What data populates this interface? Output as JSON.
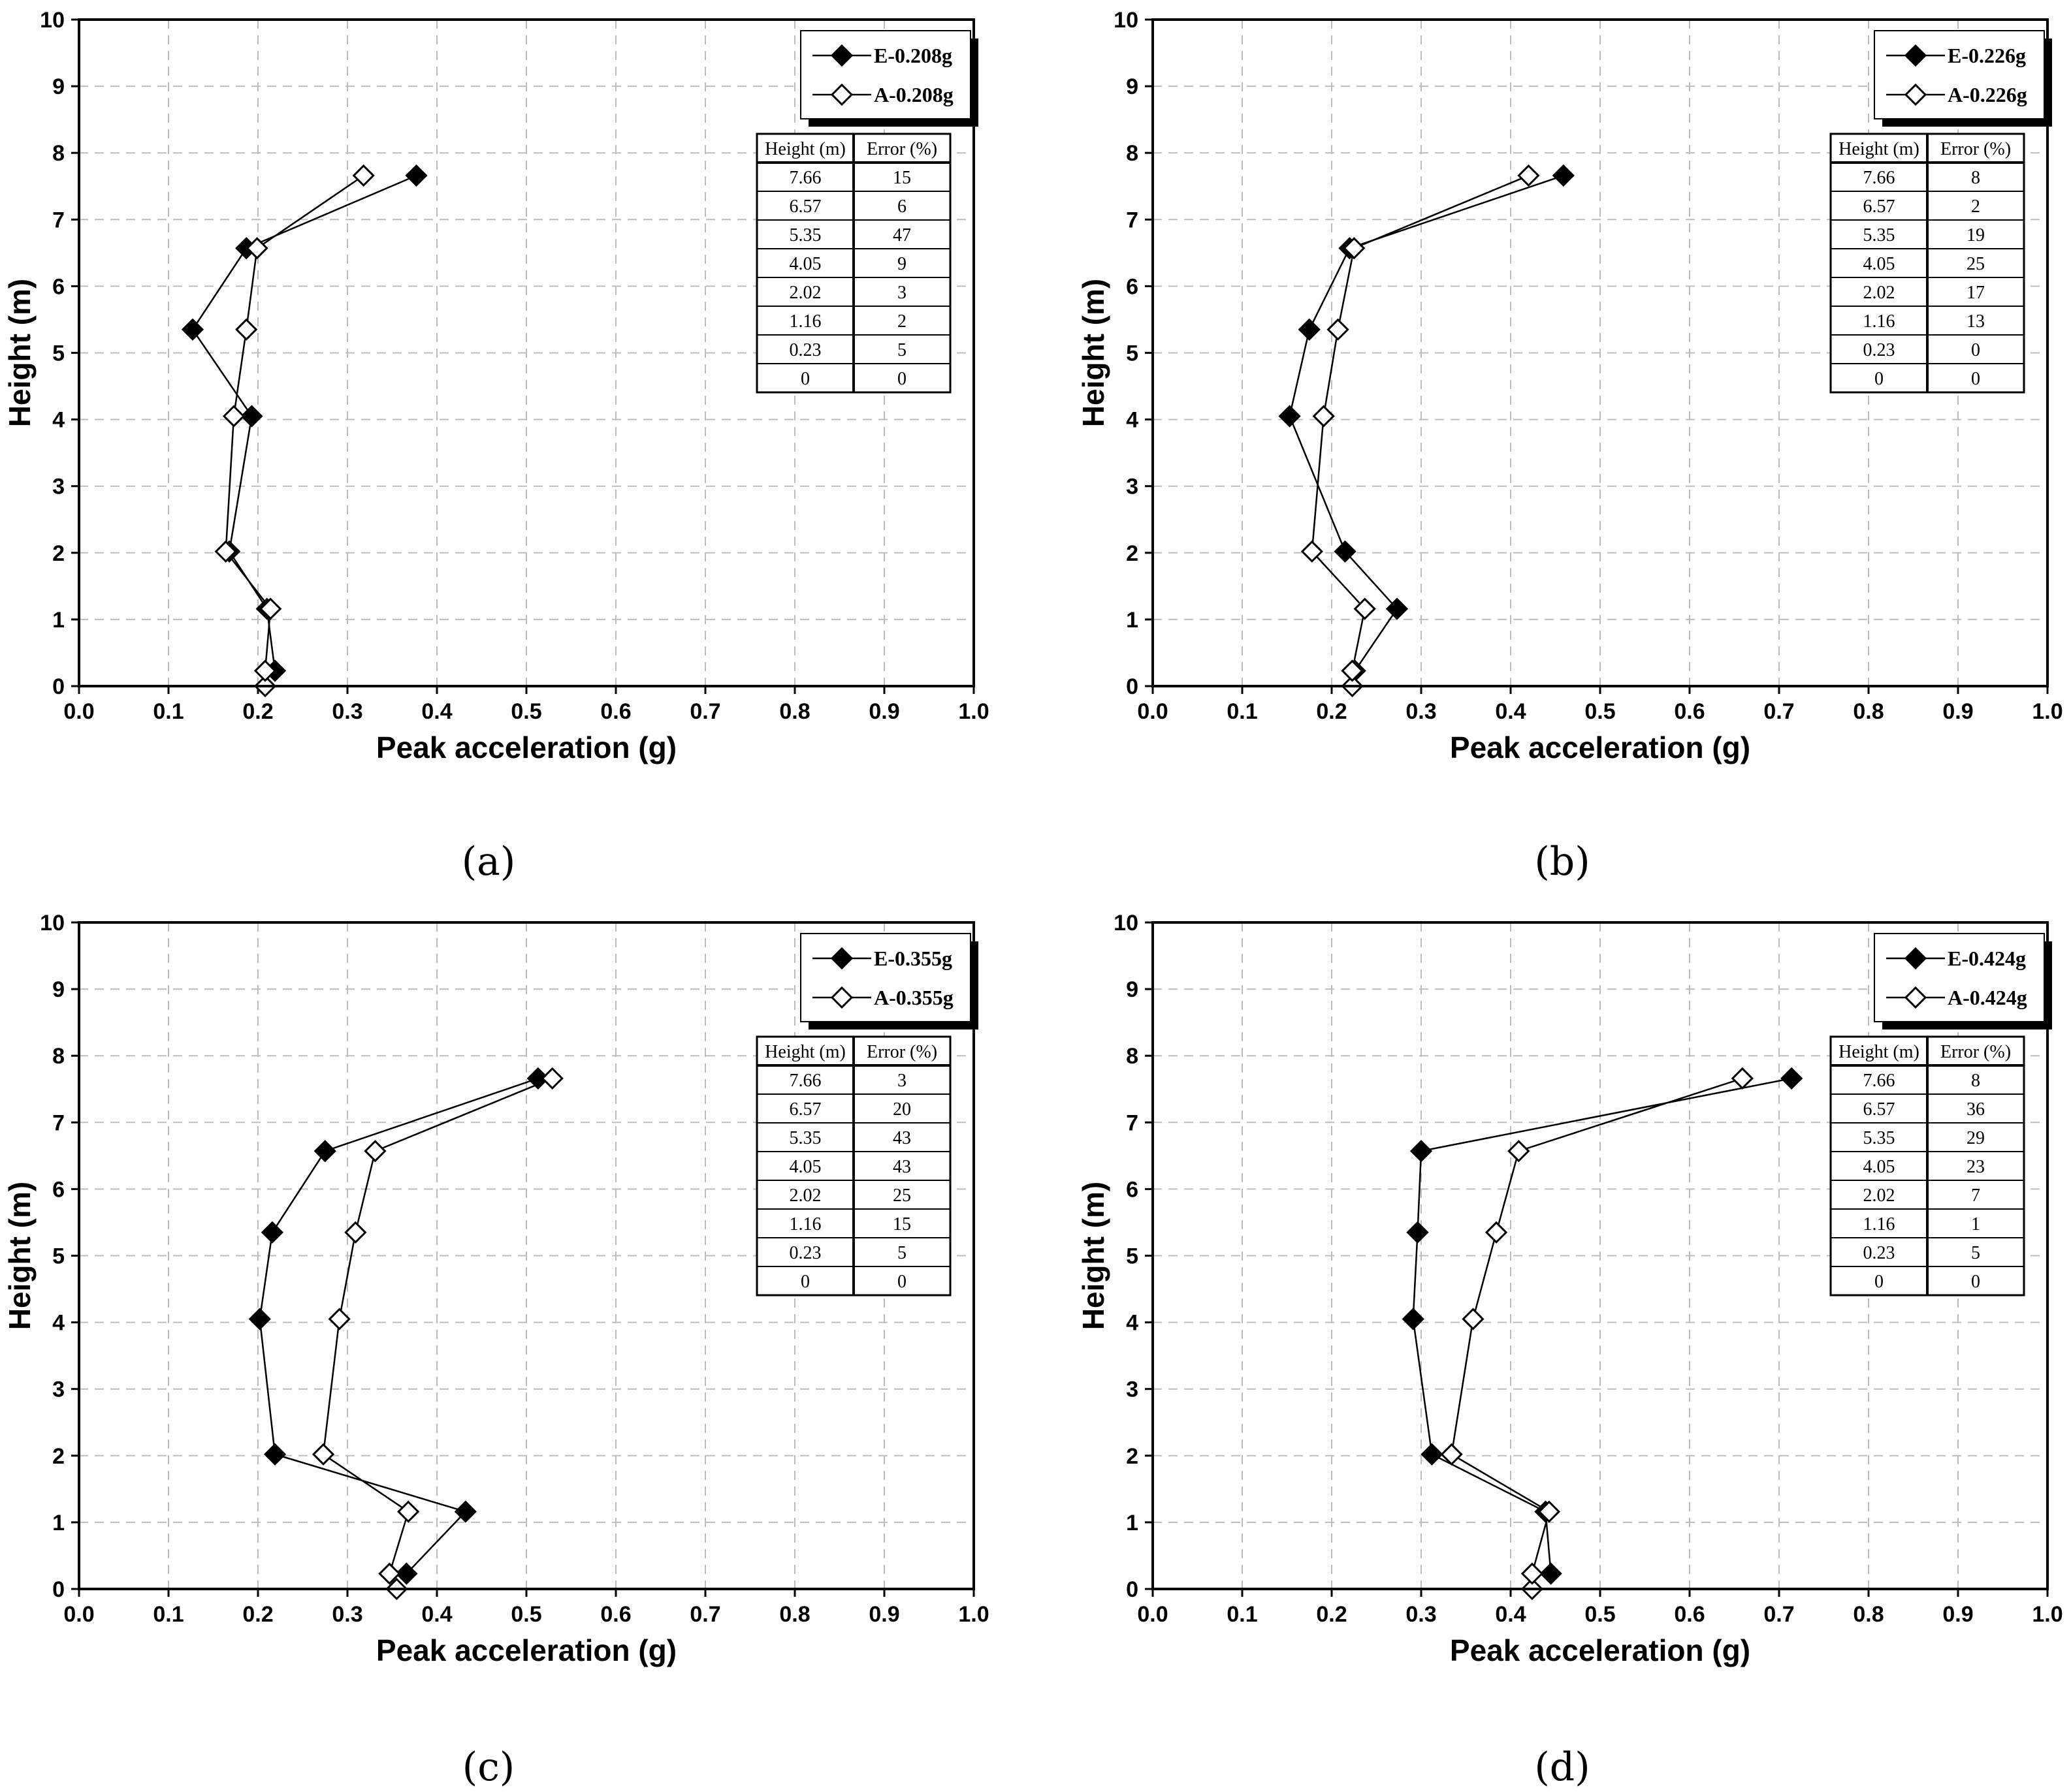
{
  "figure": {
    "panels": [
      {
        "id": "a",
        "caption": "(a)"
      },
      {
        "id": "b",
        "caption": "(b)"
      },
      {
        "id": "c",
        "caption": "(c)"
      },
      {
        "id": "d",
        "caption": "(d)"
      }
    ]
  },
  "chart_data": [
    {
      "type": "line",
      "panel": "(a)",
      "xlabel": "Peak acceleration (g)",
      "ylabel": "Height (m)",
      "xlim": [
        0.0,
        1.0
      ],
      "ylim": [
        0,
        10
      ],
      "xticks": [
        "0.0",
        "0.1",
        "0.2",
        "0.3",
        "0.4",
        "0.5",
        "0.6",
        "0.7",
        "0.8",
        "0.9",
        "1.0"
      ],
      "yticks": [
        "0",
        "1",
        "2",
        "3",
        "4",
        "5",
        "6",
        "7",
        "8",
        "9",
        "10"
      ],
      "grid": true,
      "legend_position": "top-right",
      "series": [
        {
          "name": "E-0.208g",
          "marker": "filled-diamond",
          "x": [
            0.219,
            0.21,
            0.168,
            0.193,
            0.127,
            0.187,
            0.377
          ],
          "y": [
            0.23,
            1.16,
            2.02,
            4.05,
            5.35,
            6.57,
            7.66
          ]
        },
        {
          "name": "A-0.208g",
          "marker": "open-diamond",
          "x": [
            0.208,
            0.208,
            0.214,
            0.164,
            0.173,
            0.187,
            0.199,
            0.318
          ],
          "y": [
            0,
            0.23,
            1.16,
            2.02,
            4.05,
            5.35,
            6.57,
            7.66
          ]
        }
      ],
      "table": {
        "headers": [
          "Height (m)",
          "Error (%)"
        ],
        "rows": [
          [
            "7.66",
            "15"
          ],
          [
            "6.57",
            "6"
          ],
          [
            "5.35",
            "47"
          ],
          [
            "4.05",
            "9"
          ],
          [
            "2.02",
            "3"
          ],
          [
            "1.16",
            "2"
          ],
          [
            "0.23",
            "5"
          ],
          [
            "0",
            "0"
          ]
        ]
      }
    },
    {
      "type": "line",
      "panel": "(b)",
      "xlabel": "Peak acceleration (g)",
      "ylabel": "Height (m)",
      "xlim": [
        0.0,
        1.0
      ],
      "ylim": [
        0,
        10
      ],
      "xticks": [
        "0.0",
        "0.1",
        "0.2",
        "0.3",
        "0.4",
        "0.5",
        "0.6",
        "0.7",
        "0.8",
        "0.9",
        "1.0"
      ],
      "yticks": [
        "0",
        "1",
        "2",
        "3",
        "4",
        "5",
        "6",
        "7",
        "8",
        "9",
        "10"
      ],
      "grid": true,
      "legend_position": "top-right",
      "series": [
        {
          "name": "E-0.226g",
          "marker": "filled-diamond",
          "x": [
            0.226,
            0.273,
            0.215,
            0.153,
            0.175,
            0.22,
            0.459
          ],
          "y": [
            0.23,
            1.16,
            2.02,
            4.05,
            5.35,
            6.57,
            7.66
          ]
        },
        {
          "name": "A-0.226g",
          "marker": "open-diamond",
          "x": [
            0.223,
            0.223,
            0.237,
            0.178,
            0.191,
            0.207,
            0.225,
            0.42
          ],
          "y": [
            0,
            0.23,
            1.16,
            2.02,
            4.05,
            5.35,
            6.57,
            7.66
          ]
        }
      ],
      "table": {
        "headers": [
          "Height (m)",
          "Error (%)"
        ],
        "rows": [
          [
            "7.66",
            "8"
          ],
          [
            "6.57",
            "2"
          ],
          [
            "5.35",
            "19"
          ],
          [
            "4.05",
            "25"
          ],
          [
            "2.02",
            "17"
          ],
          [
            "1.16",
            "13"
          ],
          [
            "0.23",
            "0"
          ],
          [
            "0",
            "0"
          ]
        ]
      }
    },
    {
      "type": "line",
      "panel": "(c)",
      "xlabel": "Peak acceleration (g)",
      "ylabel": "Height (m)",
      "xlim": [
        0.0,
        1.0
      ],
      "ylim": [
        0,
        10
      ],
      "xticks": [
        "0.0",
        "0.1",
        "0.2",
        "0.3",
        "0.4",
        "0.5",
        "0.6",
        "0.7",
        "0.8",
        "0.9",
        "1.0"
      ],
      "yticks": [
        "0",
        "1",
        "2",
        "3",
        "4",
        "5",
        "6",
        "7",
        "8",
        "9",
        "10"
      ],
      "grid": true,
      "legend_position": "top-right",
      "series": [
        {
          "name": "E-0.355g",
          "marker": "filled-diamond",
          "x": [
            0.366,
            0.432,
            0.219,
            0.202,
            0.216,
            0.275,
            0.513
          ],
          "y": [
            0.23,
            1.16,
            2.02,
            4.05,
            5.35,
            6.57,
            7.66
          ]
        },
        {
          "name": "A-0.355g",
          "marker": "open-diamond",
          "x": [
            0.355,
            0.347,
            0.368,
            0.273,
            0.291,
            0.309,
            0.331,
            0.529
          ],
          "y": [
            0,
            0.23,
            1.16,
            2.02,
            4.05,
            5.35,
            6.57,
            7.66
          ]
        }
      ],
      "table": {
        "headers": [
          "Height (m)",
          "Error (%)"
        ],
        "rows": [
          [
            "7.66",
            "3"
          ],
          [
            "6.57",
            "20"
          ],
          [
            "5.35",
            "43"
          ],
          [
            "4.05",
            "43"
          ],
          [
            "2.02",
            "25"
          ],
          [
            "1.16",
            "15"
          ],
          [
            "0.23",
            "5"
          ],
          [
            "0",
            "0"
          ]
        ]
      }
    },
    {
      "type": "line",
      "panel": "(d)",
      "xlabel": "Peak acceleration (g)",
      "ylabel": "Height (m)",
      "xlim": [
        0.0,
        1.0
      ],
      "ylim": [
        0,
        10
      ],
      "xticks": [
        "0.0",
        "0.1",
        "0.2",
        "0.3",
        "0.4",
        "0.5",
        "0.6",
        "0.7",
        "0.8",
        "0.9",
        "1.0"
      ],
      "yticks": [
        "0",
        "1",
        "2",
        "3",
        "4",
        "5",
        "6",
        "7",
        "8",
        "9",
        "10"
      ],
      "grid": true,
      "legend_position": "top-right",
      "series": [
        {
          "name": "E-0.424g",
          "marker": "filled-diamond",
          "x": [
            0.445,
            0.439,
            0.312,
            0.291,
            0.296,
            0.3,
            0.714
          ],
          "y": [
            0.23,
            1.16,
            2.02,
            4.05,
            5.35,
            6.57,
            7.66
          ]
        },
        {
          "name": "A-0.424g",
          "marker": "open-diamond",
          "x": [
            0.424,
            0.424,
            0.443,
            0.334,
            0.358,
            0.384,
            0.409,
            0.659
          ],
          "y": [
            0,
            0.23,
            1.16,
            2.02,
            4.05,
            5.35,
            6.57,
            7.66
          ]
        }
      ],
      "table": {
        "headers": [
          "Height (m)",
          "Error (%)"
        ],
        "rows": [
          [
            "7.66",
            "8"
          ],
          [
            "6.57",
            "36"
          ],
          [
            "5.35",
            "29"
          ],
          [
            "4.05",
            "23"
          ],
          [
            "2.02",
            "7"
          ],
          [
            "1.16",
            "1"
          ],
          [
            "0.23",
            "5"
          ],
          [
            "0",
            "0"
          ]
        ]
      }
    }
  ]
}
